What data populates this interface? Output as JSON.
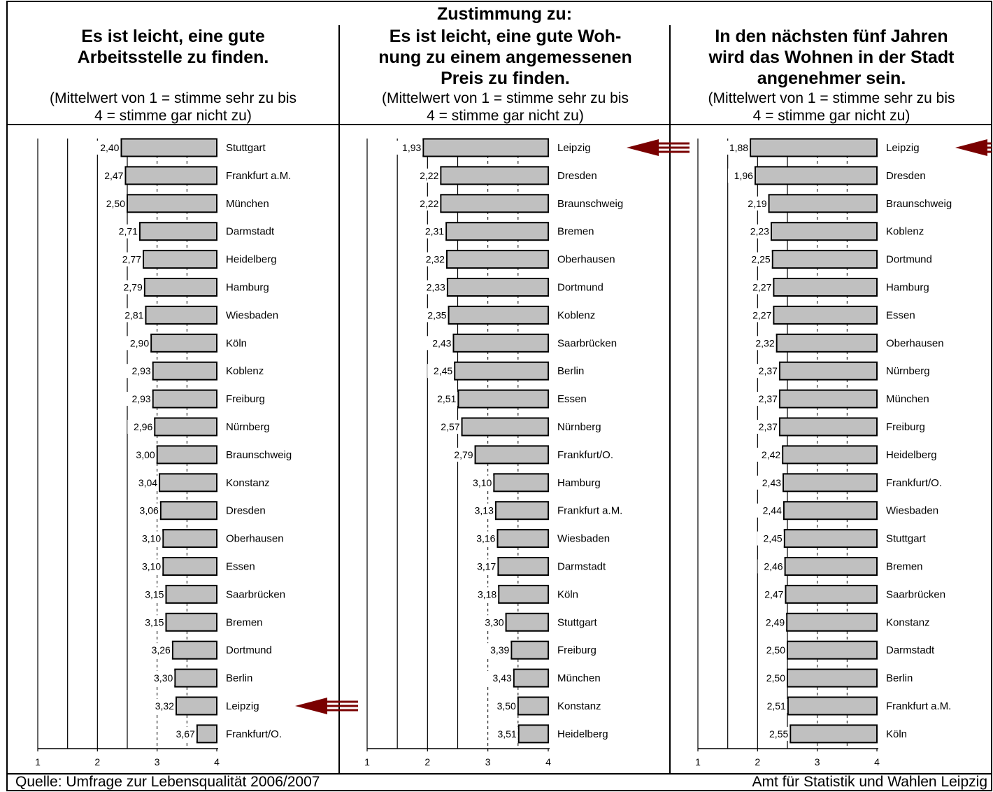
{
  "header": {
    "main_title": "Zustimmung zu:",
    "subtitle_note": "(Mittelwert von 1 = stimme sehr zu bis\n4 = stimme gar nicht zu)"
  },
  "footer": {
    "source": "Quelle: Umfrage zur Lebensqualität 2006/2007",
    "credit": "Amt für Statistik und Wahlen Leipzig"
  },
  "colors": {
    "bar_fill": "#c0c0c0",
    "bar_stroke": "#000000",
    "arrow": "#7a0000",
    "text": "#000000"
  },
  "highlighted_city": "Leipzig",
  "chart_data": [
    {
      "type": "bar",
      "orientation": "horizontal",
      "title": "Es ist leicht, eine gute\nArbeitsstelle zu finden.",
      "xlim": [
        1,
        4
      ],
      "xticks": [
        "1",
        "2",
        "3",
        "4"
      ],
      "grid": true,
      "categories": [
        "Stuttgart",
        "Frankfurt a.M.",
        "München",
        "Darmstadt",
        "Heidelberg",
        "Hamburg",
        "Wiesbaden",
        "Köln",
        "Koblenz",
        "Freiburg",
        "Nürnberg",
        "Braunschweig",
        "Konstanz",
        "Dresden",
        "Oberhausen",
        "Essen",
        "Saarbrücken",
        "Bremen",
        "Dortmund",
        "Berlin",
        "Leipzig",
        "Frankfurt/O."
      ],
      "values": [
        2.4,
        2.47,
        2.5,
        2.71,
        2.77,
        2.79,
        2.81,
        2.9,
        2.93,
        2.93,
        2.96,
        3.0,
        3.04,
        3.06,
        3.1,
        3.1,
        3.15,
        3.15,
        3.26,
        3.3,
        3.32,
        3.67
      ],
      "value_labels": [
        "2,40",
        "2,47",
        "2,50",
        "2,71",
        "2,77",
        "2,79",
        "2,81",
        "2,90",
        "2,93",
        "2,93",
        "2,96",
        "3,00",
        "3,04",
        "3,06",
        "3,10",
        "3,10",
        "3,15",
        "3,15",
        "3,26",
        "3,30",
        "3,32",
        "3,67"
      ]
    },
    {
      "type": "bar",
      "orientation": "horizontal",
      "title": "Es ist leicht, eine gute Woh-\nnung zu einem angemessenen\nPreis zu finden.",
      "xlim": [
        1,
        4
      ],
      "xticks": [
        "1",
        "2",
        "3",
        "4"
      ],
      "grid": true,
      "categories": [
        "Leipzig",
        "Dresden",
        "Braunschweig",
        "Bremen",
        "Oberhausen",
        "Dortmund",
        "Koblenz",
        "Saarbrücken",
        "Berlin",
        "Essen",
        "Nürnberg",
        "Frankfurt/O.",
        "Hamburg",
        "Frankfurt a.M.",
        "Wiesbaden",
        "Darmstadt",
        "Köln",
        "Stuttgart",
        "Freiburg",
        "München",
        "Konstanz",
        "Heidelberg"
      ],
      "values": [
        1.93,
        2.22,
        2.22,
        2.31,
        2.32,
        2.33,
        2.35,
        2.43,
        2.45,
        2.51,
        2.57,
        2.79,
        3.1,
        3.13,
        3.16,
        3.17,
        3.18,
        3.3,
        3.39,
        3.43,
        3.5,
        3.51
      ],
      "value_labels": [
        "1,93",
        "2,22",
        "2,22",
        "2,31",
        "2,32",
        "2,33",
        "2,35",
        "2,43",
        "2,45",
        "2,51",
        "2,57",
        "2,79",
        "3,10",
        "3,13",
        "3,16",
        "3,17",
        "3,18",
        "3,30",
        "3,39",
        "3,43",
        "3,50",
        "3,51"
      ]
    },
    {
      "type": "bar",
      "orientation": "horizontal",
      "title": "In den nächsten fünf Jahren\nwird das Wohnen in der Stadt\nangenehmer sein.",
      "xlim": [
        1,
        4
      ],
      "xticks": [
        "1",
        "2",
        "3",
        "4"
      ],
      "grid": true,
      "categories": [
        "Leipzig",
        "Dresden",
        "Braunschweig",
        "Koblenz",
        "Dortmund",
        "Hamburg",
        "Essen",
        "Oberhausen",
        "Nürnberg",
        "München",
        "Freiburg",
        "Heidelberg",
        "Frankfurt/O.",
        "Wiesbaden",
        "Stuttgart",
        "Bremen",
        "Saarbrücken",
        "Konstanz",
        "Darmstadt",
        "Berlin",
        "Frankfurt a.M.",
        "Köln"
      ],
      "values": [
        1.88,
        1.96,
        2.19,
        2.23,
        2.25,
        2.27,
        2.27,
        2.32,
        2.37,
        2.37,
        2.37,
        2.42,
        2.43,
        2.44,
        2.45,
        2.46,
        2.47,
        2.49,
        2.5,
        2.5,
        2.51,
        2.55
      ],
      "value_labels": [
        "1,88",
        "1,96",
        "2,19",
        "2,23",
        "2,25",
        "2,27",
        "2,27",
        "2,32",
        "2,37",
        "2,37",
        "2,37",
        "2,42",
        "2,43",
        "2,44",
        "2,45",
        "2,46",
        "2,47",
        "2,49",
        "2,50",
        "2,50",
        "2,51",
        "2,55"
      ]
    }
  ]
}
